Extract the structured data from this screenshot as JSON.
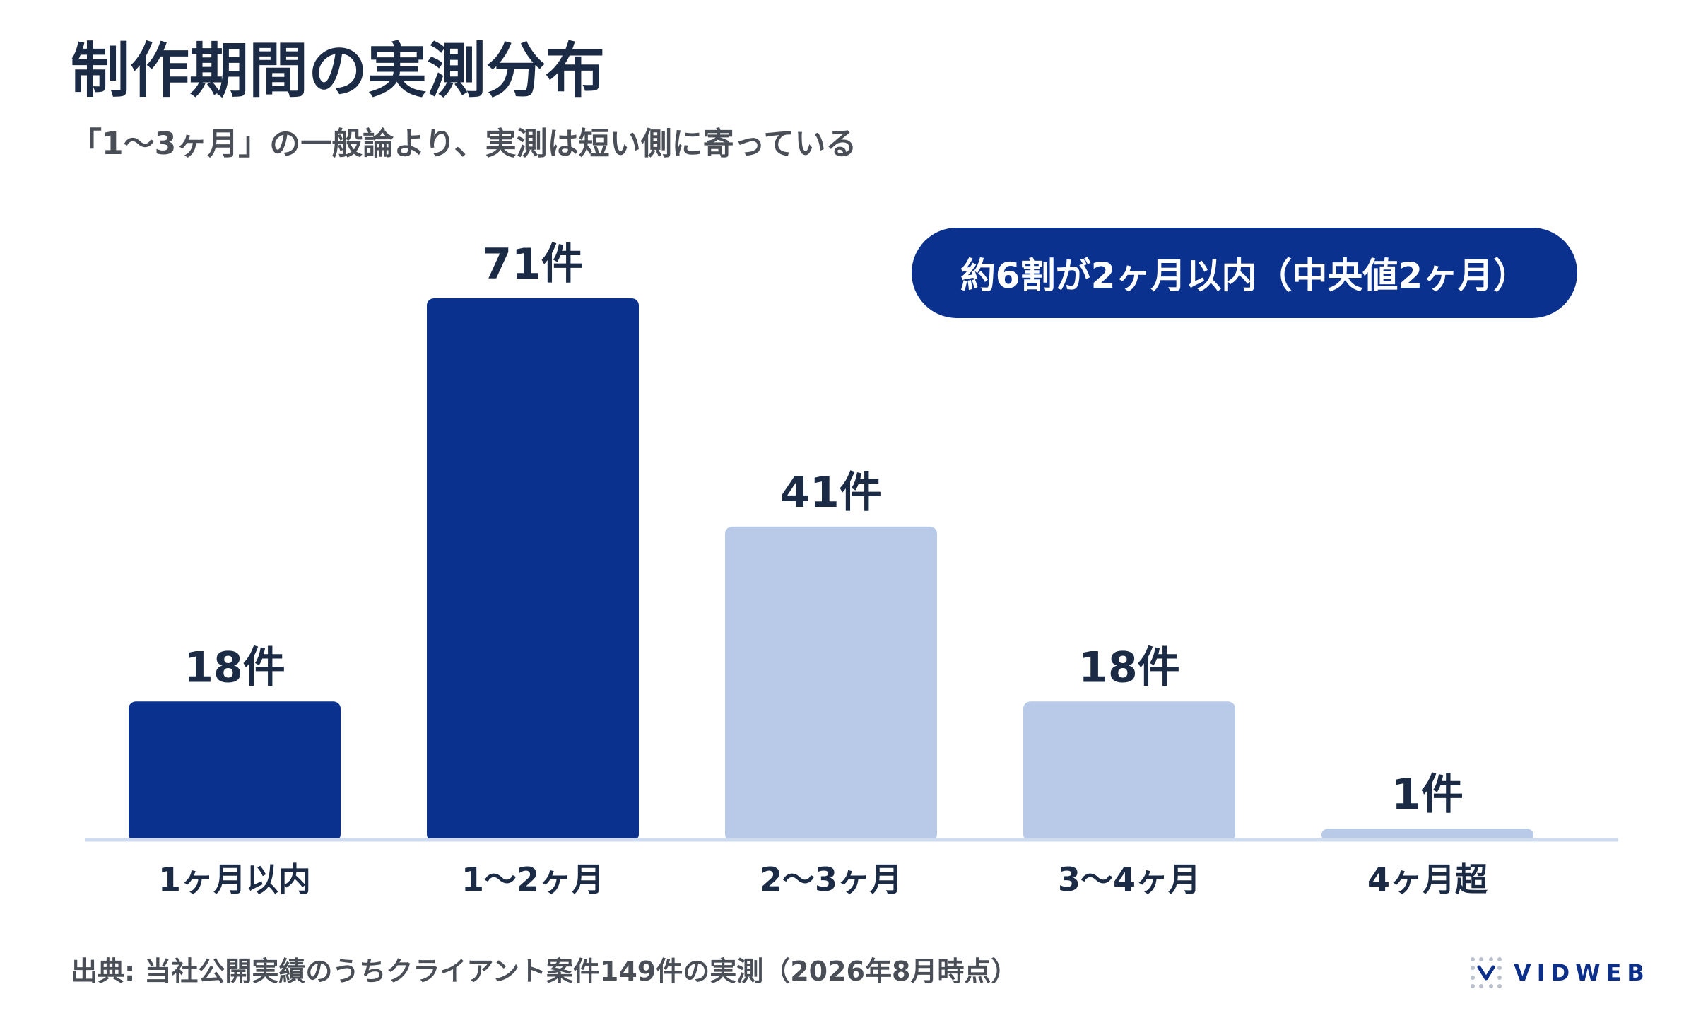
{
  "header": {
    "title": "制作期間の実測分布",
    "subtitle": "「1〜3ヶ月」の一般論より、実測は短い側に寄っている"
  },
  "callout": {
    "text": "約6割が2ヶ月以内（中央値2ヶ月）"
  },
  "footer": {
    "source": "出典: 当社公開実績のうちクライアント案件149件の実測（2026年8月時点）",
    "logo_text": "VIDWEB"
  },
  "colors": {
    "title": "#1b2b45",
    "highlight_bar": "#0b318f",
    "muted_bar": "#b8cae8",
    "baseline": "#cfdcf0",
    "callout_bg": "#0b318f",
    "label_text": "#1b2b45"
  },
  "chart_data": {
    "type": "bar",
    "categories": [
      "1ヶ月以内",
      "1〜2ヶ月",
      "2〜3ヶ月",
      "3〜4ヶ月",
      "4ヶ月超"
    ],
    "values": [
      18,
      71,
      41,
      18,
      1
    ],
    "value_labels": [
      "18件",
      "71件",
      "41件",
      "18件",
      "1件"
    ],
    "highlighted": [
      true,
      true,
      false,
      false,
      false
    ],
    "ylim": [
      0,
      71
    ],
    "grid": false,
    "legend": "none"
  }
}
